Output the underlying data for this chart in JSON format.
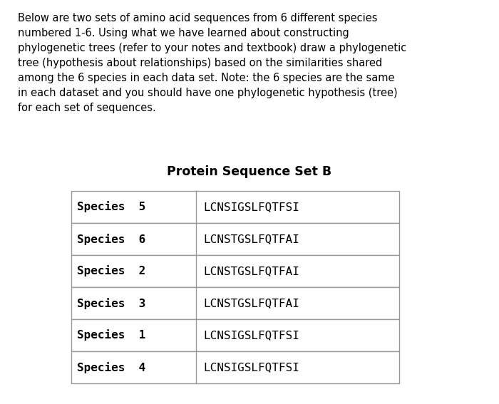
{
  "intro_lines": [
    "Below are two sets of amino acid sequences from 6 different species",
    "numbered 1-6. Using what we have learned about constructing",
    "phylogenetic trees (refer to your notes and textbook) draw a phylogenetic",
    "tree (hypothesis about relationships) based on the similarities shared",
    "among the 6 species in each data set. Note: the 6 species are the same",
    "in each dataset and you should have one phylogenetic hypothesis (tree)",
    "for each set of sequences."
  ],
  "table_title": "Protein Sequence Set B",
  "table_rows": [
    [
      "Species  5",
      "LCNSIGSLFQTFSI"
    ],
    [
      "Species  6",
      "LCNSTGSLFQTFAI"
    ],
    [
      "Species  2",
      "LCNSTGSLFQTFAI"
    ],
    [
      "Species  3",
      "LCNSTGSLFQTFAI"
    ],
    [
      "Species  1",
      "LCNSIGSLFQTFSI"
    ],
    [
      "Species  4",
      "LCNSIGSLFQTFSI"
    ]
  ],
  "bg_color": "#ffffff",
  "text_color": "#000000",
  "intro_fontsize": 10.5,
  "title_fontsize": 12.5,
  "table_fontsize": 11.5,
  "figwidth": 7.0,
  "figheight": 5.67,
  "dpi": 100
}
